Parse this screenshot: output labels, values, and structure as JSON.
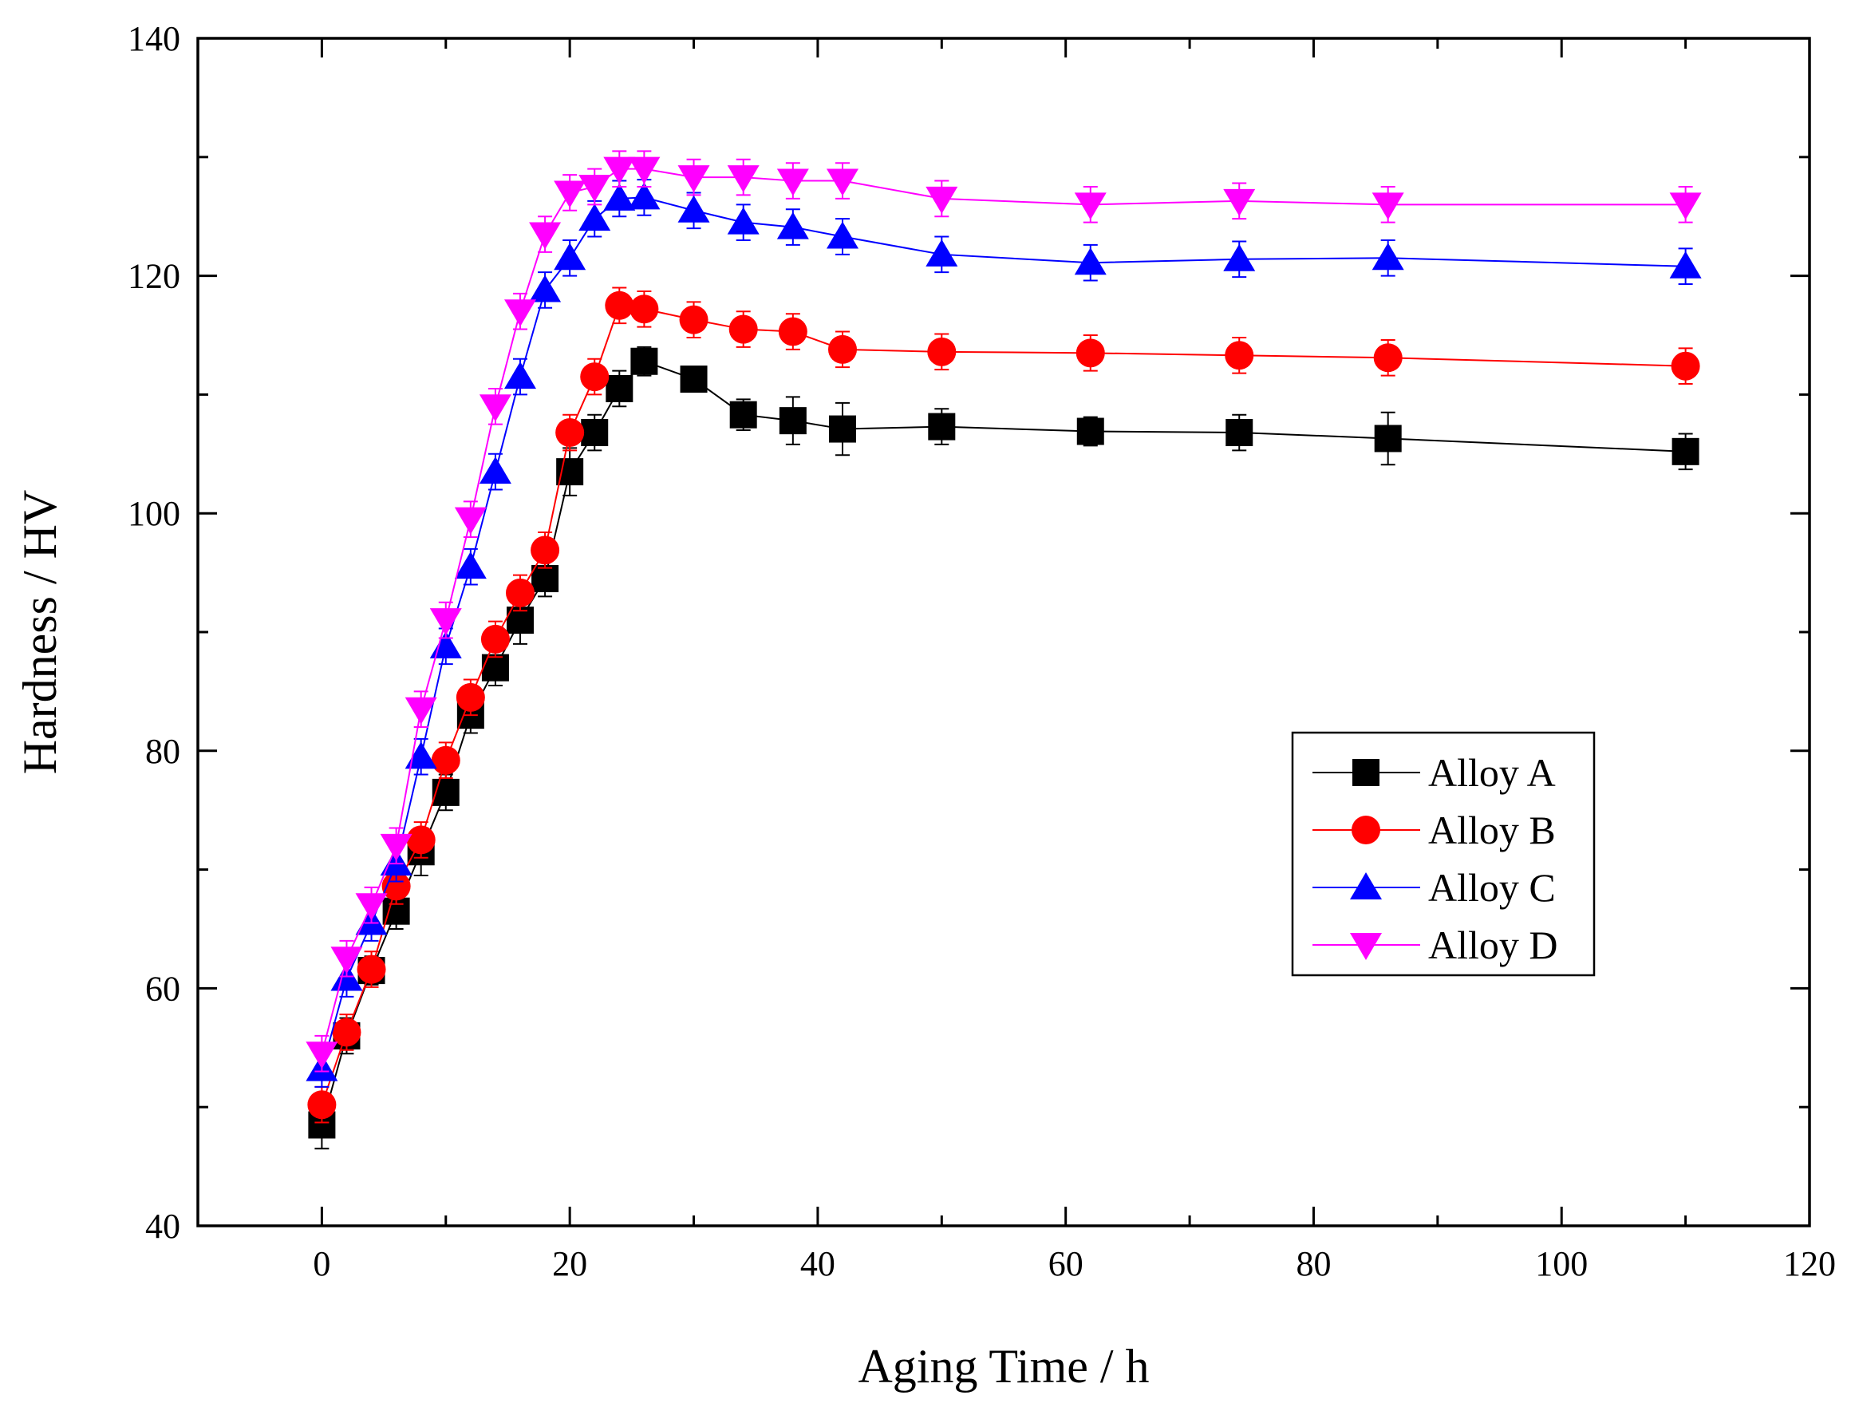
{
  "chart_data": {
    "type": "line",
    "title": "",
    "xlabel": "Aging Time / h",
    "ylabel": "Hardness / HV",
    "xlim": [
      -10,
      120
    ],
    "ylim": [
      40,
      140
    ],
    "xticks": [
      0,
      20,
      40,
      60,
      80,
      100,
      120
    ],
    "yticks": [
      40,
      60,
      80,
      100,
      120,
      140
    ],
    "x_tick_labels": [
      "0",
      "20",
      "40",
      "60",
      "80",
      "100",
      "120"
    ],
    "y_tick_labels": [
      "40",
      "60",
      "80",
      "100",
      "120",
      "140"
    ],
    "grid": false,
    "legend_position": "right-middle",
    "x": [
      0,
      2,
      4,
      6,
      8,
      10,
      12,
      14,
      16,
      18,
      20,
      22,
      24,
      26,
      30,
      34,
      38,
      42,
      50,
      62,
      74,
      86,
      110
    ],
    "series": [
      {
        "name": "Alloy A",
        "color": "#000000",
        "marker": "square",
        "values": [
          48.5,
          56,
          61.5,
          66.5,
          71.5,
          76.5,
          83,
          87,
          91,
          94.5,
          103.5,
          106.8,
          110.5,
          112.8,
          111.3,
          108.3,
          107.8,
          107.1,
          107.3,
          106.9,
          106.8,
          106.3,
          105.2
        ],
        "errors": [
          2.0,
          1.5,
          1.2,
          1.5,
          2.0,
          1.5,
          1.5,
          1.5,
          2.0,
          1.5,
          2.0,
          1.5,
          1.5,
          1.2,
          1.0,
          1.3,
          2.0,
          2.2,
          1.5,
          1.2,
          1.5,
          2.2,
          1.5
        ]
      },
      {
        "name": "Alloy B",
        "color": "#ff0000",
        "marker": "circle",
        "values": [
          50.2,
          56.3,
          61.6,
          68.6,
          72.5,
          79.2,
          84.5,
          89.4,
          93.3,
          96.9,
          106.8,
          111.5,
          117.5,
          117.2,
          116.3,
          115.5,
          115.3,
          113.8,
          113.6,
          113.5,
          113.3,
          113.1,
          112.4
        ]
      },
      {
        "name": "Alloy C",
        "color": "#0000ff",
        "marker": "triangle-up",
        "values": [
          53.2,
          60.8,
          65.5,
          70.5,
          79.5,
          88.8,
          95.5,
          103.5,
          111.5,
          118.8,
          121.5,
          124.8,
          126.5,
          126.6,
          125.5,
          124.5,
          124.1,
          123.3,
          121.8,
          121.1,
          121.4,
          121.5,
          120.8
        ]
      },
      {
        "name": "Alloy D",
        "color": "#ff00ff",
        "marker": "triangle-down",
        "values": [
          54.5,
          62.5,
          67,
          72,
          83.5,
          91,
          99.5,
          109,
          117,
          123.5,
          127,
          127.5,
          129,
          129,
          128.3,
          128.3,
          128,
          128,
          126.5,
          126,
          126.3,
          126,
          126
        ]
      }
    ]
  }
}
